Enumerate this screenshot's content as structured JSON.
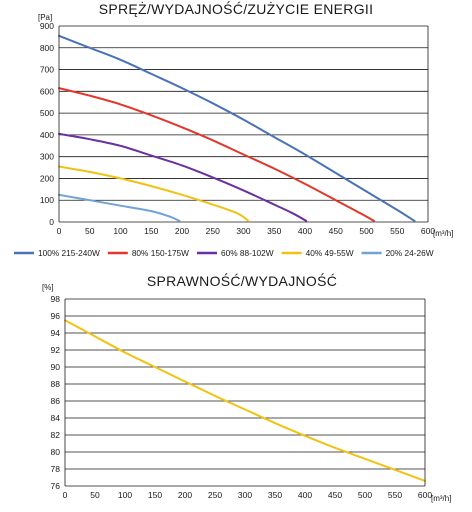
{
  "chart_data": [
    {
      "type": "line",
      "title": "SPRĘŻ/WYDAJNOŚĆ/ZUŻYCIE ENERGII",
      "ylabel": "[Pa]",
      "xlabel": "[m³/h]",
      "xlim": [
        0,
        600
      ],
      "ylim": [
        0,
        900
      ],
      "xticks": [
        "0",
        "50",
        "100",
        "150",
        "200",
        "250",
        "300",
        "350",
        "400",
        "450",
        "500",
        "550",
        "600"
      ],
      "yticks": [
        "0",
        "100",
        "200",
        "300",
        "400",
        "500",
        "600",
        "700",
        "800",
        "900"
      ],
      "grid": "horizontal",
      "legend_position": "bottom",
      "series": [
        {
          "name": "100% 215-240W",
          "color": "#4a72b8",
          "x": [
            0,
            50,
            100,
            150,
            200,
            250,
            300,
            350,
            400,
            450,
            500,
            550,
            578
          ],
          "y": [
            855,
            800,
            745,
            680,
            615,
            545,
            470,
            390,
            310,
            225,
            140,
            55,
            5
          ]
        },
        {
          "name": "80% 150-175W",
          "color": "#e2372a",
          "x": [
            0,
            50,
            100,
            150,
            200,
            250,
            300,
            350,
            400,
            450,
            490,
            512
          ],
          "y": [
            615,
            580,
            540,
            490,
            435,
            375,
            310,
            245,
            175,
            100,
            40,
            5
          ]
        },
        {
          "name": "60% 88-102W",
          "color": "#6b2fa0",
          "x": [
            0,
            50,
            100,
            150,
            200,
            250,
            300,
            350,
            380,
            402
          ],
          "y": [
            405,
            380,
            350,
            305,
            260,
            205,
            145,
            80,
            40,
            5
          ]
        },
        {
          "name": "40% 49-55W",
          "color": "#f2c213",
          "x": [
            0,
            50,
            100,
            150,
            200,
            250,
            290,
            308
          ],
          "y": [
            255,
            230,
            200,
            165,
            125,
            80,
            40,
            5
          ]
        },
        {
          "name": "20% 24-26W",
          "color": "#6fa3d8",
          "x": [
            0,
            50,
            100,
            150,
            180,
            196
          ],
          "y": [
            125,
            100,
            75,
            50,
            25,
            5
          ]
        }
      ]
    },
    {
      "type": "line",
      "title": "SPRAWNOŚĆ/WYDAJNOŚĆ",
      "ylabel": "[%]",
      "xlabel": "[m³/h]",
      "xlim": [
        0,
        600
      ],
      "ylim": [
        76,
        98
      ],
      "xticks": [
        "0",
        "50",
        "100",
        "150",
        "200",
        "250",
        "300",
        "350",
        "400",
        "450",
        "500",
        "550",
        "600"
      ],
      "yticks": [
        "76",
        "78",
        "80",
        "82",
        "84",
        "86",
        "88",
        "90",
        "92",
        "94",
        "96",
        "98"
      ],
      "grid": "horizontal",
      "series": [
        {
          "color": "#f2c213",
          "x": [
            0,
            50,
            100,
            150,
            200,
            250,
            300,
            350,
            400,
            450,
            500,
            550,
            600
          ],
          "y": [
            95.5,
            93.6,
            91.7,
            90.0,
            88.3,
            86.6,
            85.0,
            83.4,
            81.9,
            80.5,
            79.2,
            77.9,
            76.6
          ]
        }
      ]
    }
  ]
}
